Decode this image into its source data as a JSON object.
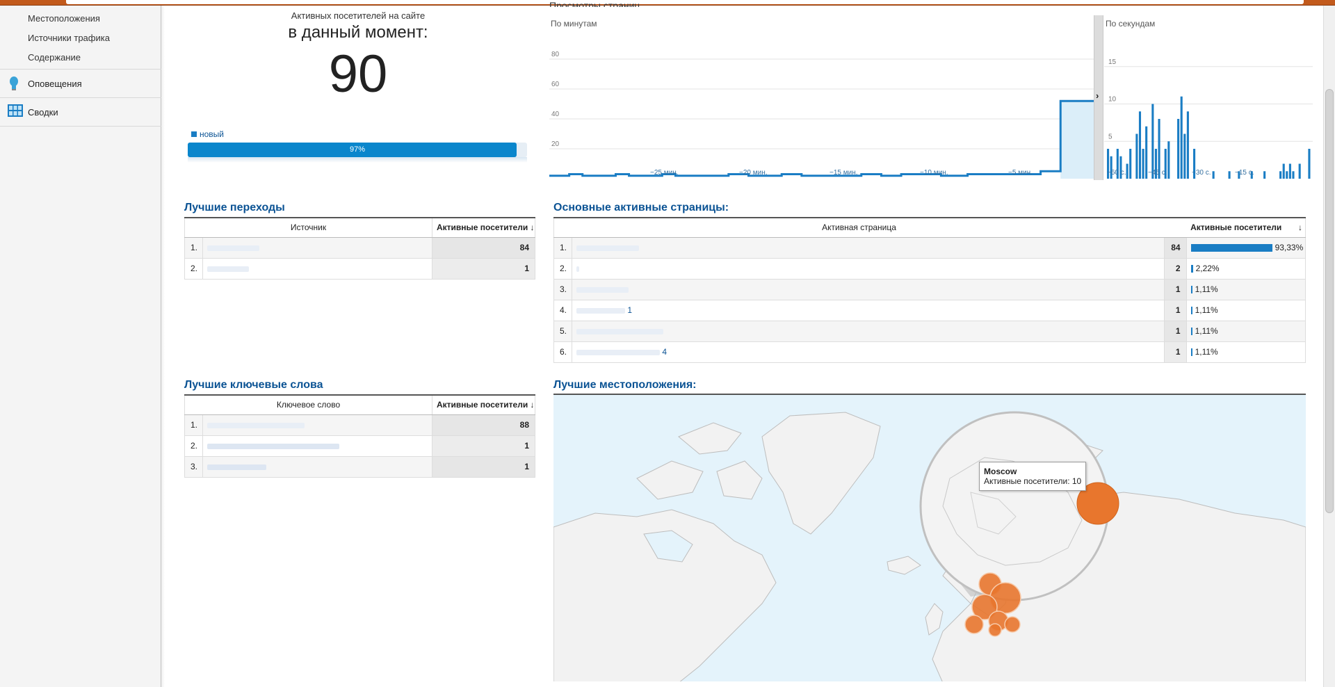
{
  "sidebar": {
    "sub_items": [
      "Местоположения",
      "Источники трафика",
      "Содержание"
    ],
    "nav_items": [
      {
        "label": "Оповещения",
        "icon": "lightbulb-icon"
      },
      {
        "label": "Сводки",
        "icon": "dashboard-grid-icon"
      }
    ]
  },
  "realtime": {
    "active_label": "Активных посетителей на сайте",
    "moment_label": "в данный момент:",
    "count": "90",
    "legend_label": "новый",
    "new_percent_label": "97%",
    "new_percent": 0.97
  },
  "pageviews": {
    "title_partial": "Просмотры страниц",
    "per_minute": {
      "label": "По минутам",
      "y_ticks": [
        "80",
        "60",
        "40",
        "20"
      ],
      "x_ticks": [
        "−25 мин.",
        "−20 мин.",
        "−15 мин.",
        "−10 мин.",
        "−5 мин."
      ],
      "values": [
        2,
        2,
        2,
        3,
        3,
        2,
        2,
        2,
        2,
        2,
        3,
        3,
        2,
        2,
        2,
        2,
        2,
        3,
        3,
        2,
        2,
        2,
        2,
        2,
        2,
        2,
        2,
        3,
        3,
        3,
        2,
        2,
        2,
        2,
        2,
        3,
        3,
        3,
        2,
        2,
        2,
        2,
        2,
        2,
        2,
        2,
        2,
        3,
        3,
        3,
        2,
        2,
        2,
        3,
        3,
        3,
        3,
        3,
        3,
        2,
        2,
        2,
        2,
        3,
        3,
        3,
        3,
        3,
        3,
        3,
        3,
        3,
        3,
        3,
        5,
        5,
        5,
        52,
        52,
        52,
        52,
        52
      ],
      "ymax": 100
    },
    "per_second": {
      "label": "По секундам",
      "y_ticks": [
        "15",
        "10",
        "5"
      ],
      "x_ticks": [
        "−60 с.",
        "−45 с.",
        "−30 с.",
        "−15 с."
      ],
      "values": [
        4,
        3,
        0,
        4,
        3,
        0,
        2,
        4,
        0,
        6,
        9,
        4,
        7,
        0,
        10,
        4,
        8,
        0,
        4,
        5,
        0,
        0,
        8,
        11,
        6,
        9,
        0,
        4,
        0,
        0,
        0,
        0,
        0,
        1,
        0,
        0,
        0,
        0,
        1,
        0,
        0,
        1,
        0,
        0,
        0,
        1,
        0,
        0,
        0,
        1,
        0,
        0,
        0,
        0,
        1,
        2,
        1,
        2,
        1,
        0,
        2,
        0,
        0,
        4
      ],
      "ymax": 20
    }
  },
  "top_referrals": {
    "title": "Лучшие переходы",
    "col_source": "Источник",
    "col_active": "Активные посетители",
    "rows": [
      {
        "idx": "1.",
        "value": "84"
      },
      {
        "idx": "2.",
        "value": "1"
      }
    ]
  },
  "top_pages": {
    "title": "Основные активные страницы:",
    "col_page": "Активная страница",
    "col_active": "Активные посетители",
    "rows": [
      {
        "idx": "1.",
        "suffix": "",
        "value": "84",
        "pct_label": "93,33%",
        "pct": 0.9333
      },
      {
        "idx": "2.",
        "suffix": "",
        "value": "2",
        "pct_label": "2,22%",
        "pct": 0.0222
      },
      {
        "idx": "3.",
        "suffix": "",
        "value": "1",
        "pct_label": "1,11%",
        "pct": 0.0111
      },
      {
        "idx": "4.",
        "suffix": "1",
        "value": "1",
        "pct_label": "1,11%",
        "pct": 0.0111
      },
      {
        "idx": "5.",
        "suffix": "",
        "value": "1",
        "pct_label": "1,11%",
        "pct": 0.0111
      },
      {
        "idx": "6.",
        "suffix": "4",
        "value": "1",
        "pct_label": "1,11%",
        "pct": 0.0111
      }
    ]
  },
  "top_keywords": {
    "title": "Лучшие ключевые слова",
    "col_keyword": "Ключевое слово",
    "col_active": "Активные посетители",
    "rows": [
      {
        "idx": "1.",
        "value": "88"
      },
      {
        "idx": "2.",
        "value": "1"
      },
      {
        "idx": "3.",
        "value": "1"
      }
    ]
  },
  "top_locations": {
    "title": "Лучшие местоположения:",
    "tooltip_city": "Moscow",
    "tooltip_text": "Активные посетители: 10"
  },
  "colors": {
    "accent": "#1a7dc4",
    "title": "#0b5394",
    "bubble": "#e8762d"
  }
}
